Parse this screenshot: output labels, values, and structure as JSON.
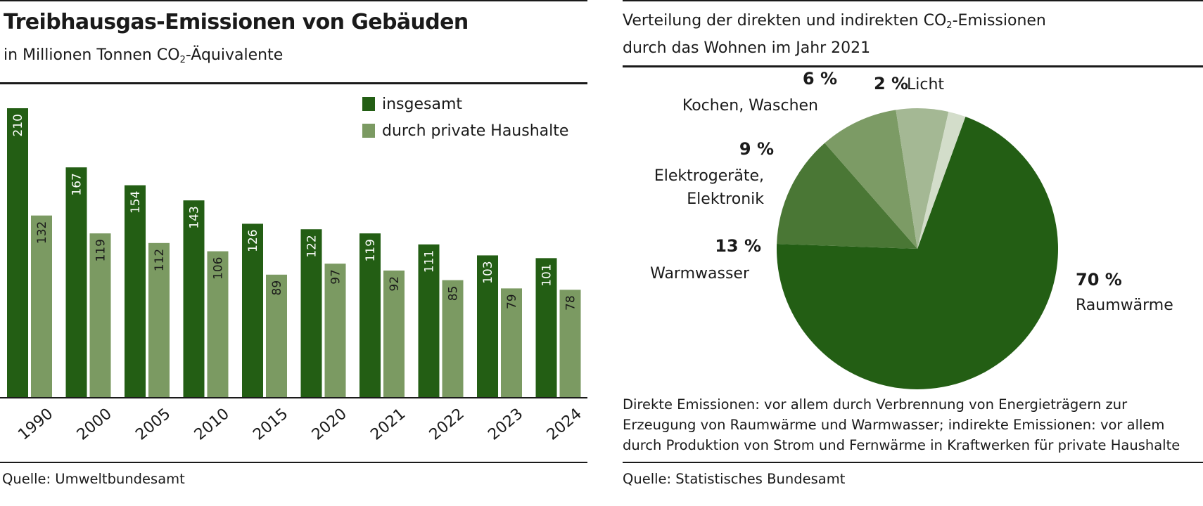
{
  "left": {
    "title": "Treibhausgas-Emissionen von Gebäuden",
    "subtitle": {
      "pre": "in Millionen Tonnen CO",
      "sub": "2",
      "post": "-Äquivalente"
    },
    "source": "Quelle: Umweltbundesamt"
  },
  "right": {
    "subtitle": {
      "line1_pre": "Verteilung der direkten und  indirekten CO",
      "sub": "2",
      "line1_post": "-Emissionen",
      "line2": "durch das Wohnen im Jahr 2021"
    },
    "note_lines": [
      "Direkte Emissionen: vor allem durch Verbrennung von Energieträgern zur",
      "Erzeugung von Raumwärme und Warmwasser; indirekte Emissionen: vor allem",
      "durch Produktion von Strom und Fernwärme in Kraftwerken für private Haushalte"
    ],
    "source": "Quelle: Statistisches Bundesamt"
  },
  "colors": {
    "dark_green": "#235e14",
    "light_green": "#7b9a62"
  },
  "chart_data": [
    {
      "type": "bar",
      "title": "Treibhausgas-Emissionen von Gebäuden",
      "ylabel": "in Millionen Tonnen CO2-Äquivalente",
      "ylim": [
        0,
        210
      ],
      "legend_position": "top-right",
      "categories": [
        "1990",
        "2000",
        "2005",
        "2010",
        "2015",
        "2020",
        "2021",
        "2022",
        "2023",
        "2024"
      ],
      "series": [
        {
          "name": "insgesamt",
          "color": "#235e14",
          "values": [
            210,
            167,
            154,
            143,
            126,
            122,
            119,
            111,
            103,
            101
          ]
        },
        {
          "name": "durch private Haushalte",
          "color": "#7b9a62",
          "values": [
            132,
            119,
            112,
            106,
            89,
            97,
            92,
            85,
            79,
            78
          ]
        }
      ]
    },
    {
      "type": "pie",
      "title": "Verteilung der direkten und indirekten CO2-Emissionen durch das Wohnen im Jahr 2021",
      "slices": [
        {
          "label": "Raumwärme",
          "value": 70,
          "display": "70 %",
          "color": "#235e14"
        },
        {
          "label": "Warmwasser",
          "value": 13,
          "display": "13 %",
          "color": "#4a7735"
        },
        {
          "label": "Elektrogeräte, Elektronik",
          "label_lines": [
            "Elektrogeräte,",
            "Elektronik"
          ],
          "value": 9,
          "display": "9 %",
          "color": "#7c9b65"
        },
        {
          "label": "Kochen, Waschen",
          "value": 6,
          "display": "6 %",
          "color": "#a4b894"
        },
        {
          "label": "Licht",
          "value": 2,
          "display": "2 %",
          "color": "#d3ddca"
        }
      ]
    }
  ]
}
